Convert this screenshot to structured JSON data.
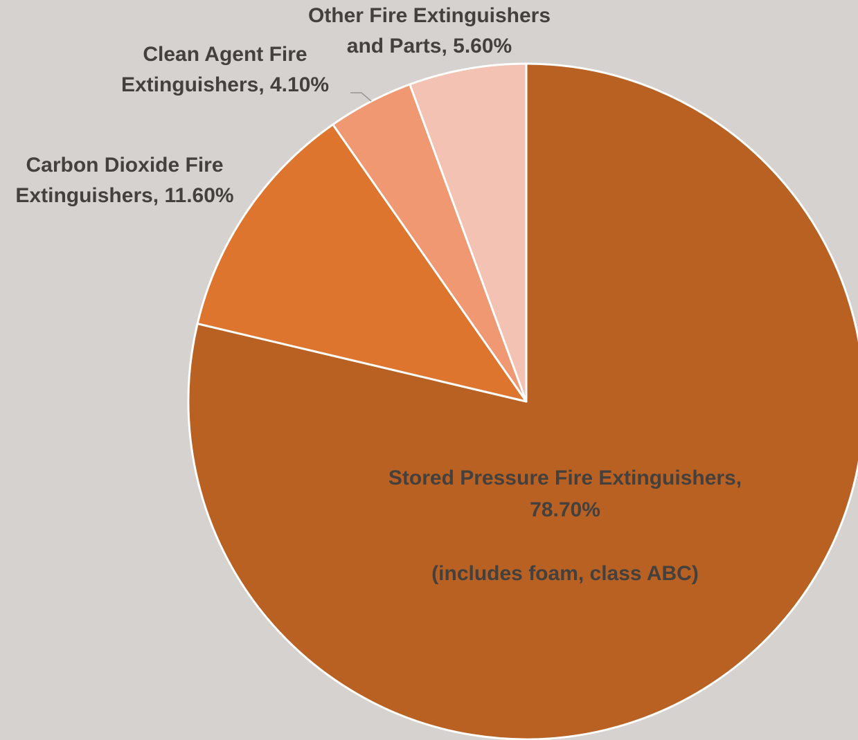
{
  "chart_data": {
    "type": "pie",
    "slices": [
      {
        "name": "Stored Pressure Fire Extinguishers",
        "value": 78.7,
        "label_lines": [
          "Stored Pressure Fire Extinguishers,",
          "78.70%",
          "",
          "(includes foam, class ABC)"
        ],
        "color": "#b86123"
      },
      {
        "name": "Carbon Dioxide Fire Extinguishers",
        "value": 11.6,
        "label_lines": [
          "Carbon Dioxide Fire",
          "Extinguishers, 11.60%"
        ],
        "color": "#de752e"
      },
      {
        "name": "Clean Agent Fire Extinguishers",
        "value": 4.1,
        "label_lines": [
          "Clean Agent Fire",
          "Extinguishers, 4.10%"
        ],
        "color": "#ef9872"
      },
      {
        "name": "Other Fire Extinguishers and Parts",
        "value": 5.6,
        "label_lines": [
          "Other Fire Extinguishers",
          "and Parts, 5.60%"
        ],
        "color": "#f4c2b2"
      }
    ],
    "start_angle": "12 o'clock",
    "direction": "clockwise",
    "background": "#d6d2cf",
    "label_color": "#44403d",
    "leader_color": "#9a9592"
  }
}
